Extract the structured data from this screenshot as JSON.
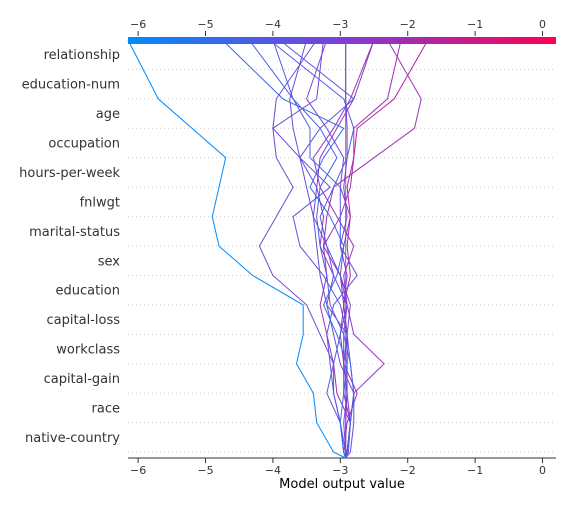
{
  "chart_data": {
    "type": "line",
    "title": "",
    "xlabel": "Model output value",
    "ylabel": "",
    "xlim": [
      -6.15,
      0.2
    ],
    "xticks": [
      "−6",
      "−5",
      "−4",
      "−3",
      "−2",
      "−1",
      "0"
    ],
    "xtick_values": [
      -6,
      -5,
      -4,
      -3,
      -2,
      -1,
      0
    ],
    "base_value": -2.92,
    "features": [
      "relationship",
      "education-num",
      "age",
      "occupation",
      "hours-per-week",
      "fnlwgt",
      "marital-status",
      "sex",
      "education",
      "capital-loss",
      "workclass",
      "capital-gain",
      "race",
      "native-country"
    ],
    "grid": "dotted horizontal",
    "colorbar": {
      "min": -6.15,
      "max": 0.2,
      "low_color": "#008bfb",
      "mid_color": "#7c3fd6",
      "high_color": "#ff0052"
    },
    "series": [
      {
        "values": [
          -2.92,
          -2.92,
          -2.92,
          -2.9,
          -2.95,
          -2.9,
          -2.95,
          -2.9,
          -3.0,
          -2.9,
          -2.95,
          -2.9,
          -2.9,
          -2.92,
          -2.92
        ]
      },
      {
        "values": [
          -2.92,
          -2.92,
          -2.95,
          -2.9,
          -2.95,
          -2.9,
          -2.85,
          -3.0,
          -2.95,
          -2.85,
          -3.0,
          -2.95,
          -3.2,
          -3.5,
          -3.2
        ]
      },
      {
        "values": [
          -2.92,
          -2.9,
          -2.85,
          -3.05,
          -3.1,
          -3.2,
          -3.3,
          -3.2,
          -3.25,
          -3.0,
          -2.85,
          -2.8,
          -2.8,
          -2.3,
          -2.1
        ]
      },
      {
        "values": [
          -2.92,
          -2.9,
          -2.85,
          -2.95,
          -2.9,
          -2.9,
          -2.95,
          -2.85,
          -2.9,
          -2.85,
          -2.9,
          -2.8,
          -2.75,
          -2.2,
          -1.7
        ]
      },
      {
        "values": [
          -2.92,
          -2.95,
          -2.9,
          -2.75,
          -2.95,
          -3.0,
          -2.95,
          -3.0,
          -3.25,
          -3.2,
          -3.1,
          -2.5,
          -1.9,
          -1.8,
          -2.3
        ]
      },
      {
        "values": [
          -2.92,
          -2.9,
          -2.85,
          -2.9,
          -2.9,
          -2.9,
          -3.2,
          -3.1,
          -3.3,
          -3.25,
          -3.35,
          -3.3,
          -3.05,
          -2.8,
          -2.5
        ]
      },
      {
        "values": [
          -2.92,
          -2.9,
          -2.85,
          -2.8,
          -2.35,
          -2.8,
          -2.9,
          -2.95,
          -2.8,
          -3.05,
          -3.3,
          -3.4,
          -3.1,
          -2.85,
          -2.5
        ]
      },
      {
        "values": [
          -2.92,
          -2.85,
          -2.8,
          -2.8,
          -3.0,
          -3.1,
          -3.2,
          -3.3,
          -3.35,
          -3.4,
          -3.5,
          -3.6,
          -3.7,
          -3.75,
          -3.5
        ]
      },
      {
        "values": [
          -2.92,
          -2.95,
          -3.0,
          -3.1,
          -3.1,
          -3.3,
          -3.5,
          -4.0,
          -4.2,
          -3.95,
          -3.7,
          -3.95,
          -4.0,
          -3.95,
          -3.35
        ]
      },
      {
        "values": [
          -2.92,
          -2.95,
          -3.0,
          -3.1,
          -3.15,
          -3.2,
          -3.1,
          -2.75,
          -3.0,
          -3.0,
          -3.0,
          -3.45,
          -3.45,
          -3.7,
          -4.0
        ]
      },
      {
        "values": [
          -2.92,
          -2.88,
          -2.85,
          -2.8,
          -2.85,
          -2.9,
          -3.0,
          -3.25,
          -3.6,
          -3.7,
          -3.15,
          -3.6,
          -3.3,
          -2.8,
          -3.9
        ]
      },
      {
        "values": [
          -2.92,
          -2.9,
          -2.85,
          -2.95,
          -2.95,
          -2.95,
          -2.9,
          -3.0,
          -3.2,
          -3.4,
          -3.35,
          -3.6,
          -4.0,
          -3.35,
          -3.25
        ]
      },
      {
        "values": [
          -2.92,
          -2.92,
          -3.0,
          -3.2,
          -3.1,
          -3.0,
          -2.9,
          -3.1,
          -3.2,
          -3.3,
          -3.1,
          -2.9,
          -2.8,
          -2.95,
          -4.05
        ]
      },
      {
        "values": [
          -2.92,
          -2.95,
          -3.0,
          -2.95,
          -2.9,
          -3.05,
          -3.25,
          -3.05,
          -2.95,
          -3.15,
          -3.45,
          -3.25,
          -2.95,
          -3.85,
          -4.75
        ]
      },
      {
        "values": [
          -2.92,
          -2.9,
          -2.85,
          -2.8,
          -2.85,
          -2.95,
          -3.15,
          -3.2,
          -3.3,
          -3.35,
          -3.3,
          -3.05,
          -3.3,
          -3.7,
          -4.35
        ]
      },
      {
        "values": [
          -2.92,
          -3.1,
          -3.35,
          -3.4,
          -3.65,
          -3.55,
          -3.55,
          -4.3,
          -4.8,
          -4.9,
          -4.8,
          -4.7,
          -5.2,
          -5.7,
          -6.15
        ]
      }
    ]
  }
}
